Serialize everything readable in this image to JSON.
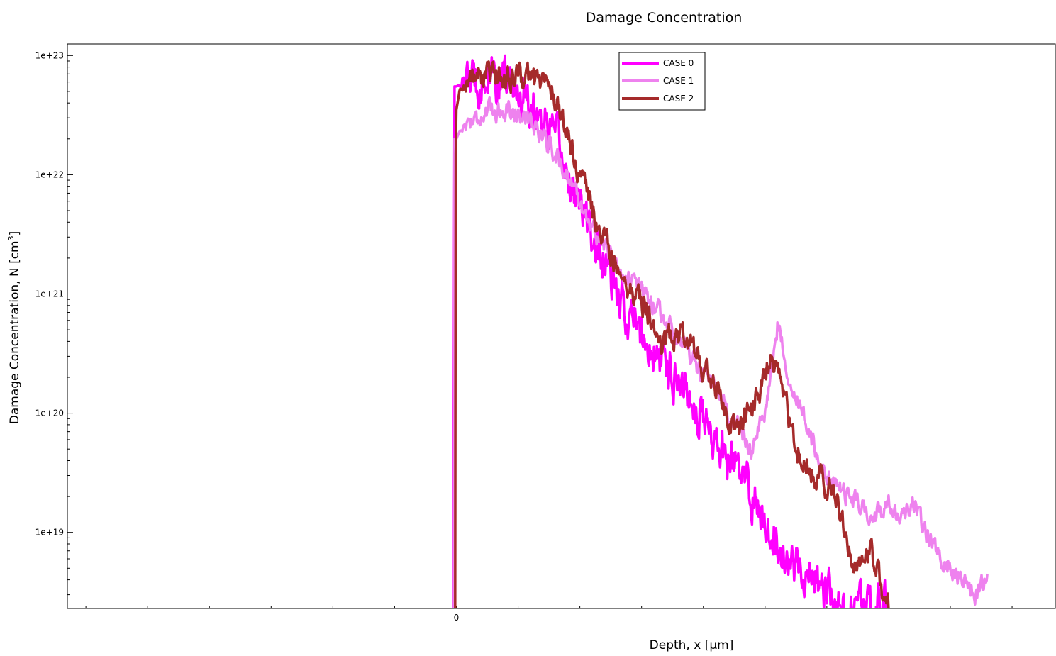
{
  "chart_data": {
    "type": "line",
    "title": "Damage Concentration",
    "xlabel": "Depth, x [µm]",
    "ylabel_main": "Damage Concentration, N [cm",
    "ylabel_sup": "3",
    "ylabel_end": "]",
    "yscale": "log",
    "ylim": [
      2.3e+18,
      1.25e+23
    ],
    "xlim": [
      -0.63,
      0.97
    ],
    "x_tick_labels": [
      {
        "value": 0,
        "label": "0"
      }
    ],
    "y_tick_labels": [
      {
        "value": 1e+19,
        "label": "1e+19"
      },
      {
        "value": 1e+20,
        "label": "1e+20"
      },
      {
        "value": 1e+21,
        "label": "1e+21"
      },
      {
        "value": 1e+22,
        "label": "1e+22"
      },
      {
        "value": 1e+23,
        "label": "1e+23"
      }
    ],
    "grid": false,
    "legend_position": "top-center",
    "series": [
      {
        "name": "CASE 0",
        "color": "#ff00ff",
        "noise": 0.16,
        "x": [
          -0.005,
          -0.004,
          -0.003,
          0.0,
          0.005,
          0.02,
          0.05,
          0.08,
          0.1,
          0.12,
          0.14,
          0.16,
          0.18,
          0.2,
          0.22,
          0.24,
          0.26,
          0.28,
          0.3,
          0.32,
          0.34,
          0.36,
          0.38,
          0.4,
          0.42,
          0.44,
          0.46,
          0.48,
          0.5,
          0.52,
          0.54,
          0.56,
          0.58,
          0.6,
          0.62,
          0.7
        ],
        "y": [
          2.3e+18,
          4e+20,
          5.5e+22,
          5.5e+22,
          5.7e+22,
          6.2e+22,
          6.5e+22,
          6e+22,
          5e+22,
          4.2e+22,
          3e+22,
          2e+22,
          1e+22,
          5.5e+21,
          3e+21,
          1.8e+21,
          9e+20,
          6.5e+20,
          4.5e+20,
          3e+20,
          2.8e+20,
          2e+20,
          1.4e+20,
          9e+19,
          6e+19,
          4e+19,
          3e+19,
          2e+19,
          1.3e+19,
          9e+18,
          6e+18,
          5e+18,
          4e+18,
          3e+18,
          2.3e+18,
          2.3e+18
        ]
      },
      {
        "name": "CASE 1",
        "color": "#ee82ee",
        "noise": 0.07,
        "x": [
          -0.004,
          -0.003,
          0.0,
          0.005,
          0.02,
          0.05,
          0.08,
          0.1,
          0.12,
          0.14,
          0.16,
          0.18,
          0.2,
          0.22,
          0.24,
          0.26,
          0.28,
          0.3,
          0.32,
          0.34,
          0.36,
          0.38,
          0.4,
          0.42,
          0.44,
          0.46,
          0.48,
          0.5,
          0.52,
          0.54,
          0.56,
          0.58,
          0.6,
          0.62,
          0.64,
          0.66,
          0.68,
          0.7,
          0.72,
          0.74,
          0.76,
          0.78,
          0.8,
          0.82,
          0.84,
          0.86
        ],
        "y": [
          2.3e+18,
          2e+22,
          2e+22,
          2.3e+22,
          2.8e+22,
          3.3e+22,
          3.6e+22,
          3.3e+22,
          2.8e+22,
          2.2e+22,
          1.5e+22,
          1e+22,
          6e+21,
          3.5e+21,
          2.5e+21,
          1.8e+21,
          1.3e+21,
          1.1e+21,
          8e+20,
          6e+20,
          4.5e+20,
          3e+20,
          2e+20,
          1.5e+20,
          1e+20,
          7e+19,
          5e+19,
          1e+20,
          5.5e+20,
          2e+20,
          1e+20,
          5e+19,
          3e+19,
          2.3e+19,
          2e+19,
          1.6e+19,
          1.4e+19,
          1.8e+19,
          1.2e+19,
          1.6e+19,
          1e+19,
          7e+18,
          5e+18,
          4e+18,
          3e+18,
          4.5e+18
        ]
      },
      {
        "name": "CASE 2",
        "color": "#a52a2a",
        "noise": 0.09,
        "x": [
          -0.002,
          -0.001,
          0.0,
          0.005,
          0.02,
          0.05,
          0.1,
          0.15,
          0.17,
          0.19,
          0.21,
          0.23,
          0.25,
          0.27,
          0.29,
          0.31,
          0.33,
          0.35,
          0.37,
          0.39,
          0.41,
          0.43,
          0.45,
          0.47,
          0.49,
          0.51,
          0.53,
          0.55,
          0.57,
          0.59,
          0.61,
          0.63,
          0.65,
          0.67,
          0.7
        ],
        "y": [
          2.3e+18,
          1.5e+22,
          3.5e+22,
          5e+22,
          6.5e+22,
          6.7e+22,
          6.6e+22,
          6e+22,
          3e+22,
          1.5e+22,
          7e+21,
          3.5e+21,
          2.2e+21,
          1.4e+21,
          1e+21,
          7e+20,
          4e+20,
          4.5e+20,
          5e+20,
          3e+20,
          2e+20,
          1.2e+20,
          7e+19,
          9e+19,
          1.5e+20,
          3e+20,
          1.5e+20,
          5e+19,
          3.5e+19,
          3e+19,
          2e+19,
          1e+19,
          5e+18,
          7e+18,
          2.3e+18
        ]
      }
    ]
  }
}
